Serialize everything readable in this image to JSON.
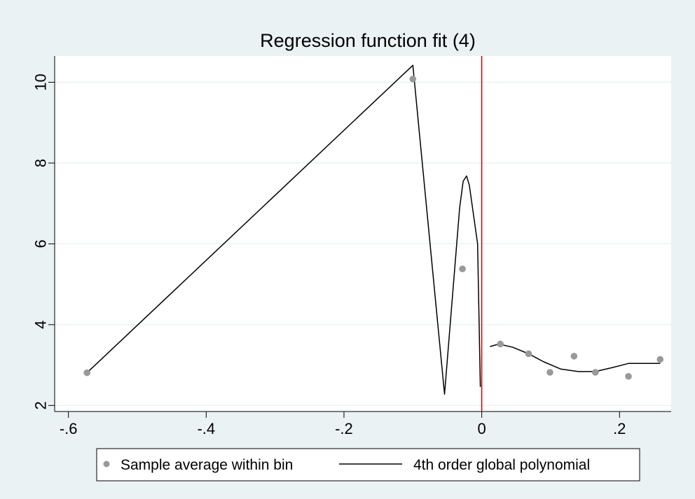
{
  "chart_data": {
    "type": "scatter",
    "title": "Regression function fit (4)",
    "xlabel": "",
    "ylabel": "",
    "xlim": [
      -0.62,
      0.275
    ],
    "ylim": [
      1.85,
      10.65
    ],
    "x_ticks": [
      {
        "value": -0.6,
        "label": "-.6"
      },
      {
        "value": -0.4,
        "label": "-.4"
      },
      {
        "value": -0.2,
        "label": "-.2"
      },
      {
        "value": 0,
        "label": "0"
      },
      {
        "value": 0.2,
        "label": ".2"
      }
    ],
    "y_ticks": [
      {
        "value": 2,
        "label": "2"
      },
      {
        "value": 4,
        "label": "4"
      },
      {
        "value": 6,
        "label": "6"
      },
      {
        "value": 8,
        "label": "8"
      },
      {
        "value": 10,
        "label": "10"
      }
    ],
    "grid": "horizontal",
    "cutoff": 0,
    "colors": {
      "plot_region": "#ffffff",
      "outer_background": "#eaf2f3",
      "grid": "#eaf2f3",
      "points": "#999999",
      "polynomial": "#000000",
      "cutoff_line": "#cc0000"
    },
    "legend_position": "bottom",
    "series": [
      {
        "name": "Sample average within bin",
        "kind": "scatter",
        "x": [
          -0.573,
          -0.1,
          -0.028,
          0.027,
          0.068,
          0.099,
          0.134,
          0.165,
          0.213,
          0.259
        ],
        "y": [
          2.81,
          10.08,
          5.38,
          3.52,
          3.28,
          2.82,
          3.22,
          2.82,
          2.72,
          3.14
        ]
      },
      {
        "name": "4th order global polynomial",
        "kind": "line",
        "segments": [
          {
            "x": [
              -0.573,
              -0.1,
              -0.054,
              -0.032,
              -0.027,
              -0.022,
              -0.018,
              -0.006,
              -0.002
            ],
            "y": [
              2.81,
              10.42,
              2.28,
              6.9,
              7.55,
              7.68,
              7.45,
              6.0,
              2.46
            ]
          },
          {
            "x": [
              0.012,
              0.025,
              0.045,
              0.068,
              0.09,
              0.115,
              0.14,
              0.165,
              0.19,
              0.213,
              0.259
            ],
            "y": [
              3.46,
              3.52,
              3.44,
              3.28,
              3.08,
              2.9,
              2.84,
              2.84,
              2.94,
              3.04,
              3.04
            ]
          }
        ]
      }
    ]
  }
}
